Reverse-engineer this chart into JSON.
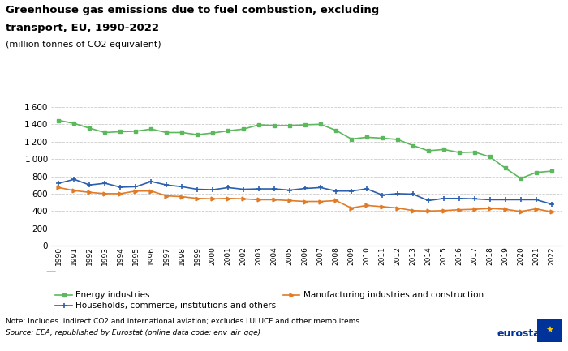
{
  "years": [
    1990,
    1991,
    1992,
    1993,
    1994,
    1995,
    1996,
    1997,
    1998,
    1999,
    2000,
    2001,
    2002,
    2003,
    2004,
    2005,
    2006,
    2007,
    2008,
    2009,
    2010,
    2011,
    2012,
    2013,
    2014,
    2015,
    2016,
    2017,
    2018,
    2019,
    2020,
    2021,
    2022
  ],
  "energy_industries": [
    1445,
    1410,
    1355,
    1305,
    1315,
    1320,
    1345,
    1305,
    1305,
    1280,
    1300,
    1325,
    1345,
    1395,
    1385,
    1385,
    1395,
    1400,
    1330,
    1230,
    1250,
    1240,
    1225,
    1155,
    1095,
    1110,
    1075,
    1080,
    1025,
    895,
    775,
    845,
    860
  ],
  "households_commerce": [
    720,
    765,
    700,
    720,
    675,
    680,
    740,
    700,
    680,
    650,
    645,
    670,
    650,
    655,
    655,
    640,
    660,
    670,
    630,
    630,
    655,
    585,
    600,
    595,
    520,
    545,
    545,
    540,
    530,
    530,
    530,
    530,
    480
  ],
  "manufacturing": [
    670,
    635,
    615,
    600,
    600,
    630,
    630,
    575,
    565,
    545,
    540,
    545,
    540,
    530,
    530,
    520,
    510,
    510,
    520,
    435,
    465,
    450,
    435,
    405,
    400,
    405,
    415,
    420,
    430,
    420,
    395,
    425,
    390
  ],
  "title_line1": "Greenhouse gas emissions due to fuel combustion, excluding",
  "title_line2": "transport, EU, 1990-2022",
  "subtitle": "(million tonnes of CO2 equivalent)",
  "ylim": [
    0,
    1700
  ],
  "yticks": [
    0,
    200,
    400,
    600,
    800,
    1000,
    1200,
    1400,
    1600
  ],
  "energy_color": "#5cb85c",
  "households_color": "#2b5fad",
  "manufacturing_color": "#e07b27",
  "energy_label": "Energy industries",
  "households_label": "Households, commerce, institutions and others",
  "manufacturing_label": "Manufacturing industries and construction",
  "note": "Note: Includes  indirect CO2 and international aviation; excludes LULUCF and other memo items",
  "source": "Source: EEA, republished by Eurostat (online data code: env_air_gge)",
  "background_color": "#ffffff",
  "grid_color": "#cccccc"
}
